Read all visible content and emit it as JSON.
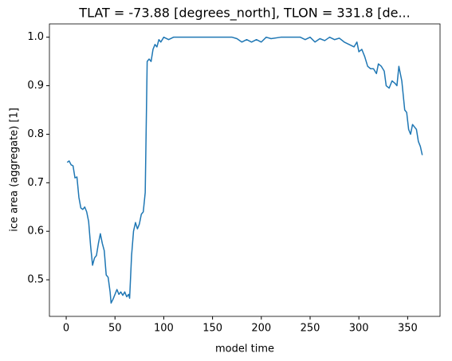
{
  "chart_data": {
    "type": "line",
    "title": "TLAT = -73.88 [degrees_north], TLON = 331.8 [de...",
    "x_label": "model time",
    "y_label": "ice area  (aggregate) [1]",
    "xlim": [
      -17.2,
      383.2
    ],
    "ylim": [
      0.4246,
      1.0274
    ],
    "xticks": [
      0,
      50,
      100,
      150,
      200,
      250,
      300,
      350
    ],
    "yticks": [
      0.5,
      0.6,
      0.7,
      0.8,
      0.9,
      {
        "value": 1,
        "label": "1.0"
      }
    ],
    "series": [
      {
        "color": "#1f77b4",
        "x": [
          1,
          3,
          5,
          7,
          9,
          11,
          13,
          15,
          17,
          19,
          21,
          23,
          25,
          27,
          29,
          31,
          33,
          35,
          37,
          39,
          41,
          43,
          45,
          46,
          48,
          50,
          52,
          54,
          56,
          58,
          60,
          62,
          64,
          65,
          67,
          69,
          71,
          73,
          75,
          77,
          79,
          81,
          83,
          85,
          87,
          89,
          91,
          93,
          95,
          97,
          100,
          105,
          110,
          130,
          150,
          170,
          175,
          180,
          185,
          190,
          195,
          200,
          205,
          210,
          220,
          240,
          245,
          250,
          255,
          260,
          265,
          270,
          275,
          280,
          285,
          290,
          295,
          298,
          300,
          303,
          306,
          309,
          312,
          315,
          318,
          320,
          323,
          326,
          328,
          331,
          334,
          337,
          339,
          341,
          344,
          347,
          349,
          351,
          353,
          355,
          357,
          359,
          361,
          363,
          365
        ],
        "values": [
          0.742,
          0.745,
          0.737,
          0.735,
          0.71,
          0.712,
          0.67,
          0.648,
          0.645,
          0.65,
          0.64,
          0.62,
          0.57,
          0.53,
          0.545,
          0.55,
          0.575,
          0.595,
          0.575,
          0.56,
          0.51,
          0.505,
          0.475,
          0.452,
          0.46,
          0.47,
          0.48,
          0.47,
          0.475,
          0.468,
          0.475,
          0.465,
          0.47,
          0.462,
          0.55,
          0.6,
          0.618,
          0.605,
          0.615,
          0.635,
          0.64,
          0.68,
          0.95,
          0.955,
          0.95,
          0.975,
          0.985,
          0.98,
          0.995,
          0.99,
          1.0,
          0.995,
          1.0,
          1.0,
          1.0,
          1.0,
          0.997,
          0.99,
          0.995,
          0.99,
          0.995,
          0.99,
          1.0,
          0.997,
          1.0,
          1.0,
          0.995,
          1.0,
          0.99,
          0.997,
          0.993,
          1.0,
          0.995,
          0.998,
          0.99,
          0.985,
          0.98,
          0.99,
          0.97,
          0.975,
          0.96,
          0.94,
          0.935,
          0.935,
          0.925,
          0.945,
          0.94,
          0.93,
          0.9,
          0.895,
          0.91,
          0.905,
          0.9,
          0.94,
          0.91,
          0.85,
          0.845,
          0.81,
          0.8,
          0.82,
          0.815,
          0.81,
          0.785,
          0.775,
          0.757
        ]
      }
    ]
  }
}
